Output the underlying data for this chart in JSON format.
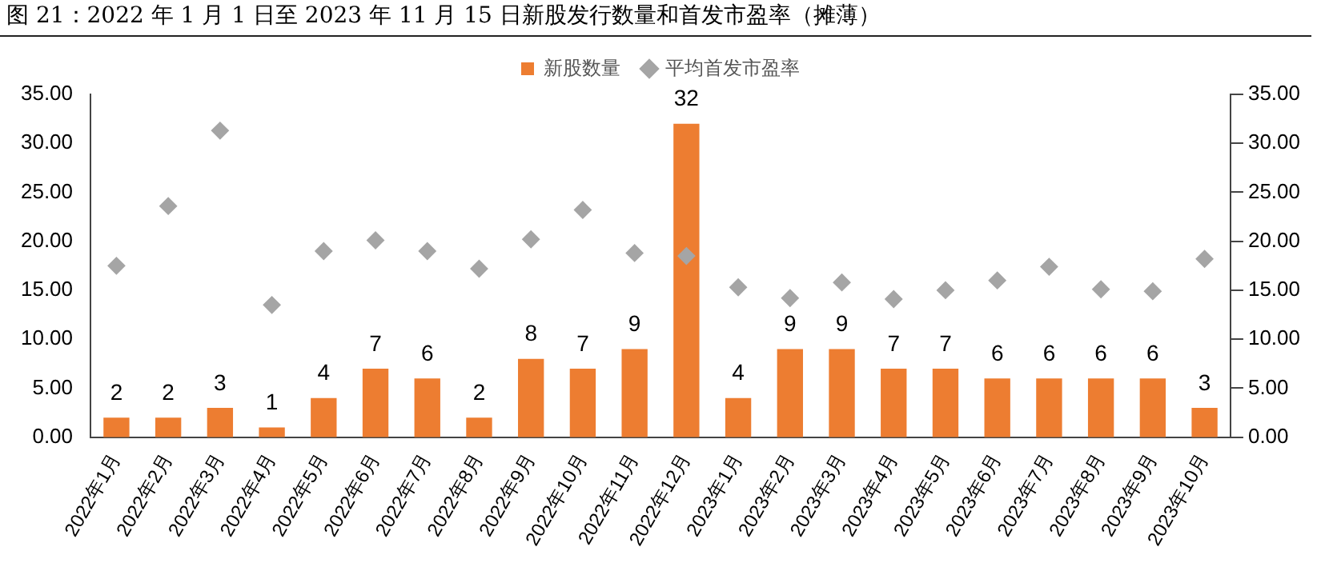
{
  "chart_data": {
    "type": "bar",
    "title": "图 21：2022 年 1 月 1 日至 2023 年 11 月 15 日新股发行数量和首发市盈率（摊薄）",
    "categories": [
      "2022年1月",
      "2022年2月",
      "2022年3月",
      "2022年4月",
      "2022年5月",
      "2022年6月",
      "2022年7月",
      "2022年8月",
      "2022年9月",
      "2022年10月",
      "2022年11月",
      "2022年12月",
      "2023年1月",
      "2023年2月",
      "2023年3月",
      "2023年4月",
      "2023年5月",
      "2023年6月",
      "2023年7月",
      "2023年8月",
      "2023年9月",
      "2023年10月"
    ],
    "series": [
      {
        "name": "新股数量",
        "color": "#ed7d31",
        "values": [
          2,
          2,
          3,
          1,
          4,
          7,
          6,
          2,
          8,
          7,
          9,
          32,
          4,
          9,
          9,
          7,
          7,
          6,
          6,
          6,
          6,
          3
        ],
        "value_labels": [
          "2",
          "2",
          "3",
          "1",
          "4",
          "7",
          "6",
          "2",
          "8",
          "7",
          "9",
          "32",
          "4",
          "9",
          "9",
          "7",
          "7",
          "6",
          "6",
          "6",
          "6",
          "3"
        ]
      },
      {
        "name": "平均首发市盈率",
        "type": "scatter",
        "axis": "y2",
        "color": "#a5a5a5",
        "marker": "diamond",
        "values": [
          17.5,
          23.6,
          31.3,
          13.5,
          19.0,
          20.1,
          19.0,
          17.2,
          20.2,
          23.2,
          18.8,
          18.5,
          15.3,
          14.2,
          15.8,
          14.1,
          15.0,
          16.0,
          17.4,
          15.1,
          14.9,
          18.2
        ]
      }
    ],
    "ylim": [
      0,
      35
    ],
    "yticks": [
      {
        "value": 0,
        "label": "0.00"
      },
      {
        "value": 5,
        "label": "5.00"
      },
      {
        "value": 10,
        "label": "10.00"
      },
      {
        "value": 15,
        "label": "15.00"
      },
      {
        "value": 20,
        "label": "20.00"
      },
      {
        "value": 25,
        "label": "25.00"
      },
      {
        "value": 30,
        "label": "30.00"
      },
      {
        "value": 35,
        "label": "35.00"
      }
    ],
    "y2lim": [
      0,
      35
    ],
    "y2ticks": [
      {
        "value": 0,
        "label": "0.00"
      },
      {
        "value": 5,
        "label": "5.00"
      },
      {
        "value": 10,
        "label": "10.00"
      },
      {
        "value": 15,
        "label": "15.00"
      },
      {
        "value": 20,
        "label": "20.00"
      },
      {
        "value": 25,
        "label": "25.00"
      },
      {
        "value": 30,
        "label": "30.00"
      },
      {
        "value": 35,
        "label": "35.00"
      }
    ],
    "grid": false,
    "legend": "top"
  }
}
